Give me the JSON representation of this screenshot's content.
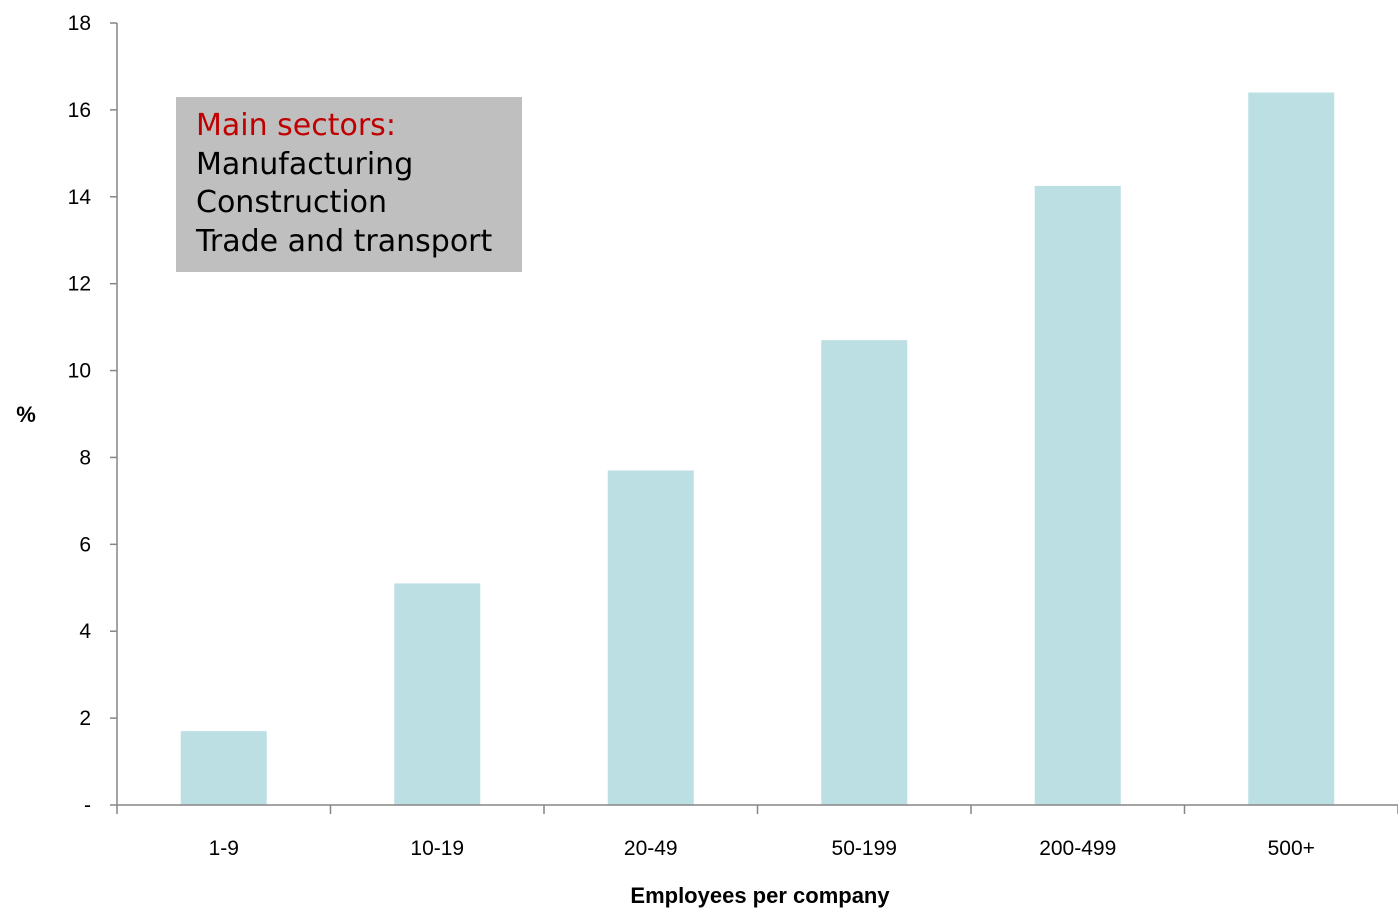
{
  "chart_data": {
    "type": "bar",
    "categories": [
      "1-9",
      "10-19",
      "20-49",
      "50-199",
      "200-499",
      "500+"
    ],
    "values": [
      1.7,
      5.1,
      7.7,
      10.7,
      14.25,
      16.4
    ],
    "xlabel": "Employees per company",
    "ylabel": "%",
    "ylim": [
      0,
      18
    ],
    "yticks": [
      "-",
      "2",
      "4",
      "6",
      "8",
      "10",
      "12",
      "14",
      "16",
      "18"
    ],
    "bar_color": "#bcdfe3",
    "grid": false,
    "annotation": {
      "heading": "Main sectors:",
      "lines": [
        "Manufacturing",
        "Construction",
        "Trade and transport"
      ],
      "heading_color": "#c00000",
      "background": "#bfbfbf"
    }
  }
}
